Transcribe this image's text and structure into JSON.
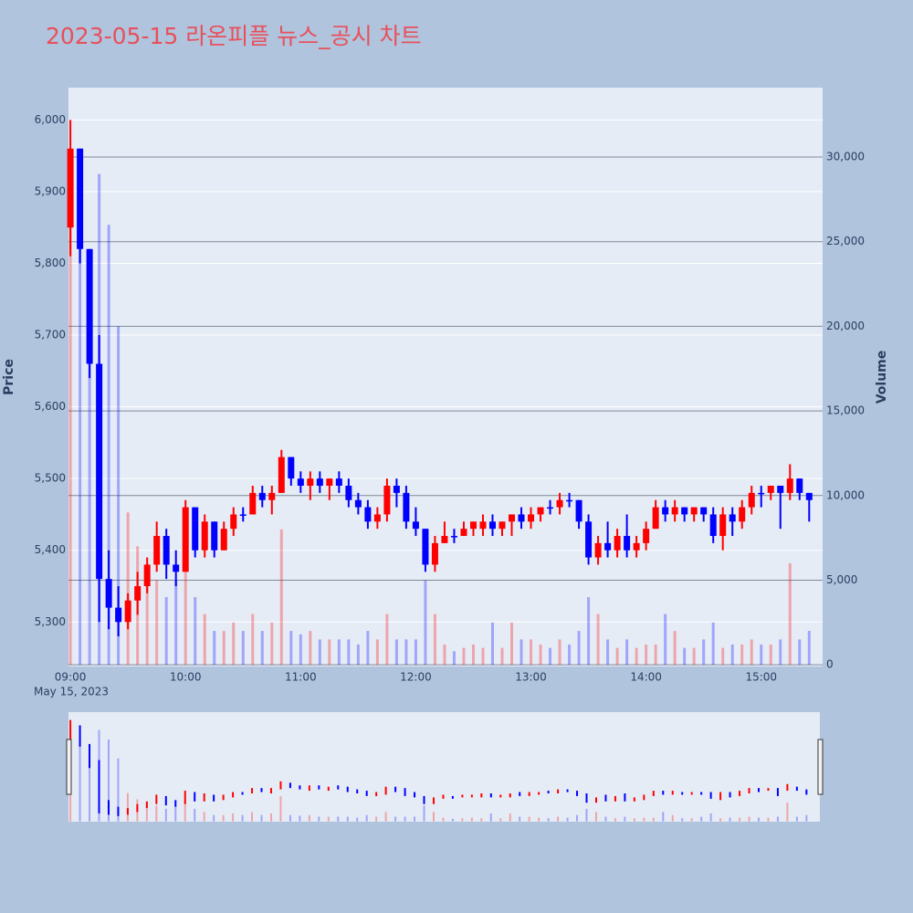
{
  "chart_data": {
    "type": "candlestick",
    "title": "2023-05-15 라온피플 뉴스_공시 차트",
    "y_label": "Price",
    "y2_label": "Volume",
    "x_date_label": "May 15, 2023",
    "increasing_color": "#ff0000",
    "decreasing_color": "#0000ff",
    "xlim": [
      "08:59",
      "15:32"
    ],
    "xticks": [
      "09:00",
      "10:00",
      "11:00",
      "12:00",
      "13:00",
      "14:00",
      "15:00"
    ],
    "ylim": [
      5238,
      6045
    ],
    "yticks": [
      {
        "value": 5300,
        "label": "5,300"
      },
      {
        "value": 5400,
        "label": "5,400"
      },
      {
        "value": 5500,
        "label": "5,500"
      },
      {
        "value": 5600,
        "label": "5,600"
      },
      {
        "value": 5700,
        "label": "5,700"
      },
      {
        "value": 5800,
        "label": "5,800"
      },
      {
        "value": 5900,
        "label": "5,900"
      },
      {
        "value": 6000,
        "label": "6,000"
      }
    ],
    "y2lim": [
      -100,
      34100
    ],
    "y2ticks": [
      0,
      {
        "value": 5000,
        "label": "5,000"
      },
      {
        "value": 10000,
        "label": "10,000"
      },
      {
        "value": 15000,
        "label": "15,000"
      },
      {
        "value": 20000,
        "label": "20,000"
      },
      {
        "value": 25000,
        "label": "25,000"
      },
      {
        "value": 30000,
        "label": "30,000"
      }
    ],
    "grid": true,
    "x": [
      "09:00",
      "09:05",
      "09:10",
      "09:15",
      "09:20",
      "09:25",
      "09:30",
      "09:35",
      "09:40",
      "09:45",
      "09:50",
      "09:55",
      "10:00",
      "10:05",
      "10:10",
      "10:15",
      "10:20",
      "10:25",
      "10:30",
      "10:35",
      "10:40",
      "10:45",
      "10:50",
      "10:55",
      "11:00",
      "11:05",
      "11:10",
      "11:15",
      "11:20",
      "11:25",
      "11:30",
      "11:35",
      "11:40",
      "11:45",
      "11:50",
      "11:55",
      "12:00",
      "12:05",
      "12:10",
      "12:15",
      "12:20",
      "12:25",
      "12:30",
      "12:35",
      "12:40",
      "12:45",
      "12:50",
      "12:55",
      "13:00",
      "13:05",
      "13:10",
      "13:15",
      "13:20",
      "13:25",
      "13:30",
      "13:35",
      "13:40",
      "13:45",
      "13:50",
      "13:55",
      "14:00",
      "14:05",
      "14:10",
      "14:15",
      "14:20",
      "14:25",
      "14:30",
      "14:35",
      "14:40",
      "14:45",
      "14:50",
      "14:55",
      "15:00",
      "15:05",
      "15:10",
      "15:15",
      "15:20",
      "15:25"
    ],
    "open": [
      5850,
      5960,
      5820,
      5660,
      5360,
      5320,
      5300,
      5330,
      5350,
      5380,
      5420,
      5380,
      5370,
      5460,
      5400,
      5440,
      5400,
      5430,
      5450,
      5450,
      5480,
      5470,
      5480,
      5530,
      5500,
      5490,
      5500,
      5490,
      5500,
      5490,
      5470,
      5460,
      5440,
      5450,
      5490,
      5480,
      5440,
      5430,
      5380,
      5410,
      5420,
      5420,
      5430,
      5430,
      5440,
      5430,
      5440,
      5450,
      5440,
      5450,
      5460,
      5460,
      5470,
      5470,
      5440,
      5390,
      5410,
      5400,
      5420,
      5400,
      5410,
      5430,
      5460,
      5450,
      5460,
      5450,
      5460,
      5450,
      5420,
      5450,
      5440,
      5460,
      5480,
      5480,
      5490,
      5480,
      5500,
      5480
    ],
    "high": [
      6000,
      5960,
      5820,
      5700,
      5400,
      5350,
      5340,
      5370,
      5390,
      5440,
      5430,
      5400,
      5470,
      5460,
      5450,
      5440,
      5440,
      5460,
      5460,
      5490,
      5490,
      5490,
      5540,
      5530,
      5510,
      5510,
      5510,
      5500,
      5510,
      5500,
      5480,
      5470,
      5460,
      5500,
      5500,
      5490,
      5460,
      5430,
      5420,
      5440,
      5430,
      5440,
      5440,
      5450,
      5450,
      5440,
      5450,
      5460,
      5460,
      5460,
      5470,
      5480,
      5480,
      5470,
      5450,
      5420,
      5440,
      5430,
      5450,
      5420,
      5440,
      5470,
      5470,
      5470,
      5460,
      5460,
      5460,
      5460,
      5460,
      5460,
      5470,
      5490,
      5490,
      5490,
      5490,
      5520,
      5500,
      5480
    ],
    "low": [
      5810,
      5800,
      5640,
      5300,
      5290,
      5280,
      5290,
      5310,
      5340,
      5370,
      5360,
      5350,
      5370,
      5390,
      5390,
      5390,
      5400,
      5420,
      5440,
      5450,
      5460,
      5450,
      5480,
      5490,
      5480,
      5470,
      5480,
      5470,
      5480,
      5460,
      5450,
      5430,
      5430,
      5440,
      5460,
      5430,
      5420,
      5370,
      5370,
      5410,
      5410,
      5420,
      5420,
      5420,
      5420,
      5420,
      5420,
      5430,
      5430,
      5440,
      5450,
      5450,
      5460,
      5430,
      5380,
      5380,
      5390,
      5390,
      5390,
      5390,
      5400,
      5430,
      5440,
      5440,
      5440,
      5440,
      5440,
      5410,
      5400,
      5420,
      5430,
      5450,
      5460,
      5470,
      5430,
      5470,
      5470,
      5440
    ],
    "close": [
      5960,
      5820,
      5660,
      5360,
      5320,
      5300,
      5330,
      5350,
      5380,
      5420,
      5380,
      5370,
      5460,
      5400,
      5440,
      5400,
      5430,
      5450,
      5450,
      5480,
      5470,
      5480,
      5530,
      5500,
      5490,
      5500,
      5490,
      5500,
      5490,
      5470,
      5460,
      5440,
      5450,
      5490,
      5480,
      5440,
      5430,
      5380,
      5410,
      5420,
      5420,
      5430,
      5440,
      5440,
      5430,
      5440,
      5450,
      5440,
      5450,
      5460,
      5460,
      5470,
      5470,
      5440,
      5390,
      5410,
      5400,
      5420,
      5400,
      5410,
      5430,
      5460,
      5450,
      5460,
      5450,
      5460,
      5450,
      5420,
      5450,
      5440,
      5460,
      5480,
      5480,
      5490,
      5480,
      5500,
      5480,
      5470
    ],
    "volume": [
      29000,
      26000,
      20000,
      29000,
      26000,
      20000,
      9000,
      7000,
      6000,
      5000,
      4000,
      5000,
      7000,
      4000,
      3000,
      2000,
      2000,
      2500,
      2000,
      3000,
      2000,
      2500,
      8000,
      2000,
      1800,
      2000,
      1500,
      1500,
      1500,
      1500,
      1200,
      2000,
      1500,
      3000,
      1500,
      1500,
      1500,
      5000,
      3000,
      1200,
      800,
      1000,
      1200,
      1000,
      2500,
      1000,
      2500,
      1500,
      1500,
      1200,
      1000,
      1500,
      1200,
      2000,
      4000,
      3000,
      1500,
      1000,
      1500,
      1000,
      1200,
      1200,
      3000,
      2000,
      1000,
      1000,
      1500,
      2500,
      1000,
      1200,
      1200,
      1500,
      1200,
      1200,
      1500,
      6000,
      1500,
      2000
    ]
  }
}
